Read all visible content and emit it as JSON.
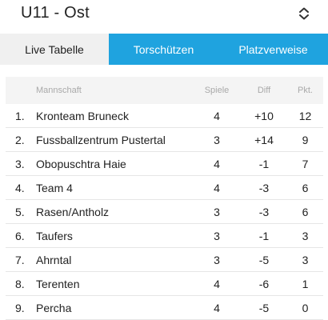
{
  "header": {
    "league_title": "U11 - Ost",
    "select_icon": "chevron-up-down-icon"
  },
  "tabs": [
    {
      "label": "Live Tabelle",
      "active": true
    },
    {
      "label": "Torschützen",
      "active": false
    },
    {
      "label": "Platzverweise",
      "active": false
    }
  ],
  "colors": {
    "accent": "#1fa3df",
    "active_tab_bg": "#f0f0f0",
    "header_row_bg": "#f4f4f4"
  },
  "table": {
    "columns": {
      "team": "Mannschaft",
      "games": "Spiele",
      "diff": "Diff",
      "points": "Pkt."
    },
    "rows": [
      {
        "rank": "1.",
        "team": "Kronteam Bruneck",
        "games": "4",
        "diff": "+10",
        "points": "12"
      },
      {
        "rank": "2.",
        "team": "Fussballzentrum Pustertal",
        "games": "3",
        "diff": "+14",
        "points": "9"
      },
      {
        "rank": "3.",
        "team": "Obopuschtra Haie",
        "games": "4",
        "diff": "-1",
        "points": "7"
      },
      {
        "rank": "4.",
        "team": "Team 4",
        "games": "4",
        "diff": "-3",
        "points": "6"
      },
      {
        "rank": "5.",
        "team": "Rasen/Antholz",
        "games": "3",
        "diff": "-3",
        "points": "6"
      },
      {
        "rank": "6.",
        "team": "Taufers",
        "games": "3",
        "diff": "-1",
        "points": "3"
      },
      {
        "rank": "7.",
        "team": "Ahrntal",
        "games": "3",
        "diff": "-5",
        "points": "3"
      },
      {
        "rank": "8.",
        "team": "Terenten",
        "games": "4",
        "diff": "-6",
        "points": "1"
      },
      {
        "rank": "9.",
        "team": "Percha",
        "games": "4",
        "diff": "-5",
        "points": "0"
      }
    ]
  }
}
